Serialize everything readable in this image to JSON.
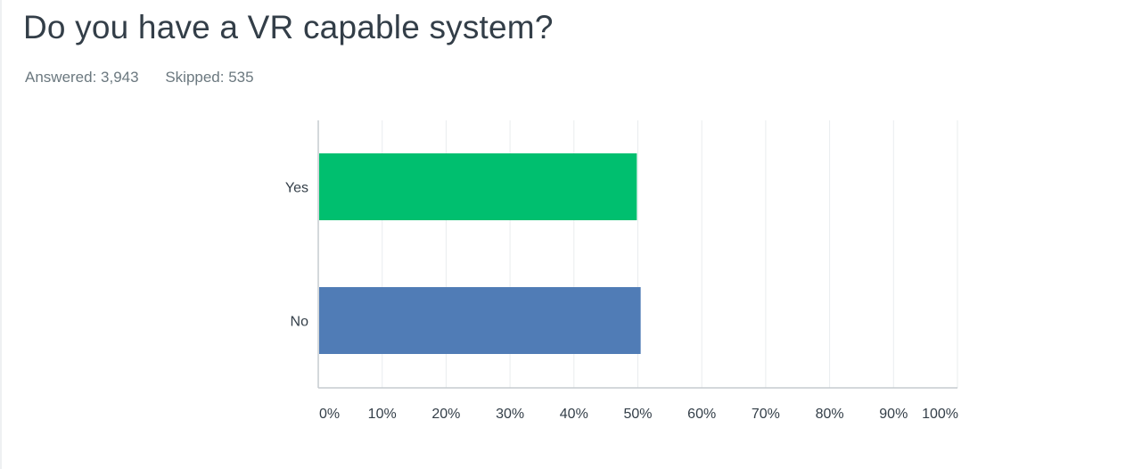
{
  "question": {
    "title": "Do you have a VR capable system?",
    "answered": "Answered: 3,943",
    "skipped": "Skipped: 535"
  },
  "colors": {
    "title": "#333e48",
    "stats": "#6b787f",
    "gridline": "#e9ecee",
    "axis": "#c5cbcf",
    "yes_bar": "#00bf6f",
    "no_bar": "#507cb6"
  },
  "chart_data": {
    "type": "bar",
    "orientation": "horizontal",
    "categories": [
      "Yes",
      "No"
    ],
    "values": [
      49.7,
      50.3
    ],
    "bar_colors": [
      "#00bf6f",
      "#507cb6"
    ],
    "xlim": [
      0,
      100
    ],
    "xticks": [
      "0%",
      "10%",
      "20%",
      "30%",
      "40%",
      "50%",
      "60%",
      "70%",
      "80%",
      "90%",
      "100%"
    ],
    "grid": true,
    "xlabel": "",
    "ylabel": ""
  }
}
